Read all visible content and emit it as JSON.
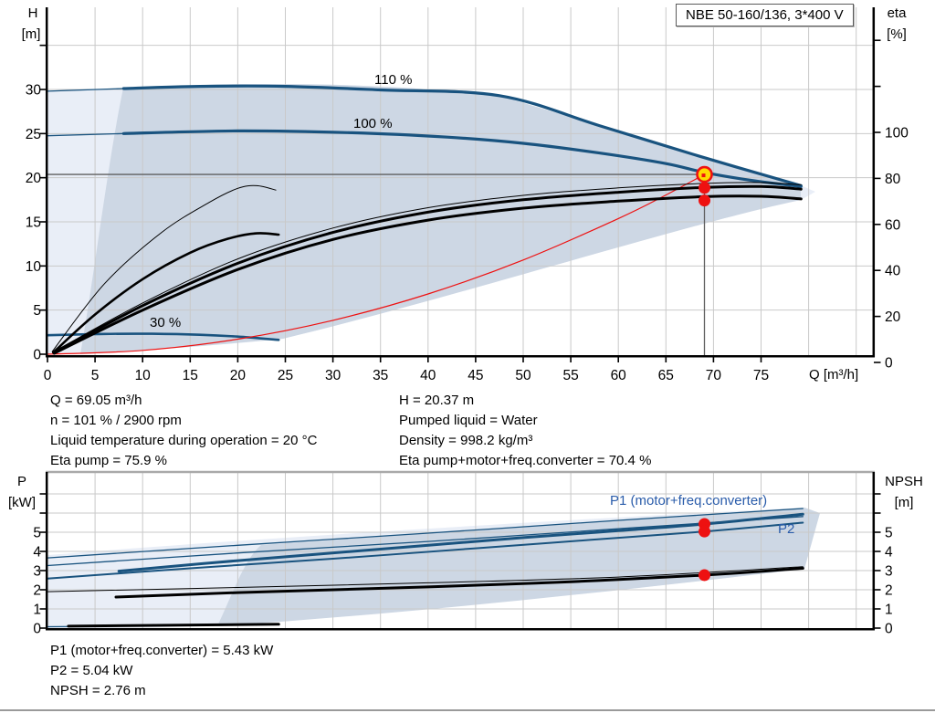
{
  "title_box": {
    "label": "NBE 50-160/136, 3*400 V"
  },
  "colors": {
    "curve_blue": "#19537f",
    "label_blue": "#2a5caa",
    "red": "#ee1111",
    "marker_yellow": "#ffd900",
    "fill_light": "#e9eef7",
    "fill_dark": "#cdd7e4",
    "grid": "#c9c9c9",
    "axis": "#000000",
    "duty_gray": "#5f5f5f",
    "frame_gray": "#a9a9a9"
  },
  "top_chart": {
    "left_axis": {
      "title_line1": "H",
      "title_line2": "[m]",
      "ticks": [
        0,
        5,
        10,
        15,
        20,
        25,
        30
      ]
    },
    "right_axis": {
      "title_line1": "eta",
      "title_line2": "[%]",
      "ticks": [
        0,
        20,
        40,
        60,
        80,
        100
      ]
    },
    "x_axis": {
      "label": "Q [m³/h]",
      "ticks": [
        0,
        5,
        10,
        15,
        20,
        25,
        30,
        35,
        40,
        45,
        50,
        55,
        60,
        65,
        70,
        75
      ]
    },
    "curve_labels": {
      "c110": "110 %",
      "c100": "100 %",
      "c30": "30 %"
    }
  },
  "bottom_chart": {
    "left_axis": {
      "title_line1": "P",
      "title_line2": "[kW]",
      "ticks": [
        0,
        1,
        2,
        3,
        4,
        5
      ]
    },
    "right_axis": {
      "title_line1": "NPSH",
      "title_line2": "[m]",
      "ticks": [
        0,
        1,
        2,
        3,
        4,
        5
      ]
    },
    "labels": {
      "p1": "P1 (motor+freq.converter)",
      "p2": "P2"
    }
  },
  "info_top": {
    "left": [
      "Q = 69.05 m³/h",
      "n = 101 % / 2900 rpm",
      "Liquid temperature during operation = 20 °C",
      "Eta pump = 75.9 %"
    ],
    "right": [
      "H = 20.37 m",
      "Pumped liquid = Water",
      "Density = 998.2 kg/m³",
      "Eta pump+motor+freq.converter = 70.4 %"
    ]
  },
  "info_bottom": [
    "P1 (motor+freq.converter) = 5.43 kW",
    "P2 = 5.04 kW",
    "NPSH = 2.76 m"
  ],
  "chart_data": [
    {
      "type": "line",
      "title": "NBE 50-160/136, 3*400 V",
      "xlabel": "Q [m³/h]",
      "ylabel": "H [m]",
      "y2label": "eta [%]",
      "xlim": [
        0,
        87
      ],
      "ylim": [
        0,
        39.3
      ],
      "y2lim": [
        0,
        154
      ],
      "grid": true,
      "legend_position": "none",
      "series": [
        {
          "name": "speed-110-envelope-thin",
          "axis": "left",
          "color": "curve_blue",
          "width": 1.3,
          "points": [
            [
              0,
              29.8
            ],
            [
              8,
              30.1
            ]
          ]
        },
        {
          "name": "speed-110-curve",
          "axis": "left",
          "color": "curve_blue",
          "width": 3.2,
          "points": [
            [
              8,
              30.1
            ],
            [
              16,
              30.35
            ],
            [
              25,
              30.35
            ],
            [
              35,
              29.95
            ],
            [
              47.5,
              29.3
            ],
            [
              58,
              25.9
            ],
            [
              68,
              22.6
            ],
            [
              79.2,
              19.1
            ]
          ]
        },
        {
          "name": "speed-100-envelope-thin",
          "axis": "left",
          "color": "curve_blue",
          "width": 1.3,
          "points": [
            [
              0,
              24.75
            ],
            [
              8,
              25.0
            ]
          ]
        },
        {
          "name": "speed-100-curve",
          "axis": "left",
          "color": "curve_blue",
          "width": 3.2,
          "points": [
            [
              8,
              25.0
            ],
            [
              20,
              25.3
            ],
            [
              32,
              25.1
            ],
            [
              42,
              24.6
            ],
            [
              50,
              23.9
            ],
            [
              58,
              22.8
            ],
            [
              65,
              21.6
            ],
            [
              69.05,
              20.6
            ],
            [
              74,
              19.7
            ],
            [
              79.2,
              19.0
            ]
          ]
        },
        {
          "name": "speed-30-curve",
          "axis": "left",
          "color": "curve_blue",
          "width": 2.6,
          "points": [
            [
              0,
              2.15
            ],
            [
              6,
              2.3
            ],
            [
              11,
              2.32
            ],
            [
              16,
              2.2
            ],
            [
              20,
              2.0
            ],
            [
              24.3,
              1.62
            ]
          ]
        },
        {
          "name": "duty-parabola",
          "axis": "left",
          "color": "red",
          "width": 1.2,
          "points": [
            [
              0,
              0
            ],
            [
              10,
              0.43
            ],
            [
              20,
              1.71
            ],
            [
              30,
              3.84
            ],
            [
              40,
              6.83
            ],
            [
              50,
              10.68
            ],
            [
              60,
              15.37
            ],
            [
              65,
              18.04
            ],
            [
              69.05,
              20.37
            ]
          ]
        },
        {
          "name": "eta-low-speed-thin",
          "axis": "left",
          "color": "axis",
          "width": 1,
          "points": [
            [
              0.5,
              0.3
            ],
            [
              6,
              8.0
            ],
            [
              12,
              13.8
            ],
            [
              17,
              17.2
            ],
            [
              20,
              18.8
            ],
            [
              22,
              19.1
            ],
            [
              24,
              18.6
            ]
          ]
        },
        {
          "name": "eta-mid-speed-thick",
          "axis": "left",
          "color": "axis",
          "width": 2.6,
          "points": [
            [
              0.6,
              0.2
            ],
            [
              5,
              4.5
            ],
            [
              10,
              8.5
            ],
            [
              15,
              11.5
            ],
            [
              19,
              13.1
            ],
            [
              22,
              13.7
            ],
            [
              24.3,
              13.55
            ]
          ]
        },
        {
          "name": "eta-band-upper-thin",
          "axis": "left",
          "color": "axis",
          "width": 1,
          "points": [
            [
              0.7,
              0.3
            ],
            [
              10,
              5.8
            ],
            [
              20,
              10.8
            ],
            [
              30,
              14.3
            ],
            [
              40,
              16.6
            ],
            [
              50,
              18.0
            ],
            [
              60,
              18.85
            ],
            [
              69,
              19.35
            ],
            [
              75,
              19.45
            ],
            [
              79.2,
              19.2
            ]
          ]
        },
        {
          "name": "eta-band-main",
          "axis": "left",
          "color": "axis",
          "width": 3,
          "points": [
            [
              0.7,
              0.2
            ],
            [
              10,
              5.5
            ],
            [
              20,
              10.3
            ],
            [
              30,
              13.8
            ],
            [
              40,
              16.1
            ],
            [
              50,
              17.5
            ],
            [
              60,
              18.35
            ],
            [
              69,
              18.9
            ],
            [
              75,
              19.0
            ],
            [
              79.2,
              18.7
            ]
          ]
        },
        {
          "name": "eta-band-lower",
          "axis": "left",
          "color": "axis",
          "width": 3,
          "points": [
            [
              0.7,
              0.1
            ],
            [
              10,
              5.0
            ],
            [
              20,
              9.6
            ],
            [
              30,
              13.0
            ],
            [
              40,
              15.2
            ],
            [
              50,
              16.55
            ],
            [
              60,
              17.35
            ],
            [
              69,
              17.85
            ],
            [
              75,
              17.9
            ],
            [
              79.2,
              17.6
            ]
          ]
        }
      ],
      "operating_point": {
        "Q": 69.05,
        "H": 20.37,
        "eta_pump": 75.9,
        "eta_total": 70.4
      }
    },
    {
      "type": "line",
      "xlabel": "Q [m³/h]",
      "ylabel": "P [kW]",
      "y2label": "NPSH [m]",
      "xlim": [
        0,
        87
      ],
      "ylim": [
        0,
        8.15
      ],
      "y2lim": [
        0,
        8.15
      ],
      "grid": true,
      "legend_position": "inline",
      "series": [
        {
          "name": "p-envelope-upper-thin",
          "axis": "left",
          "color": "curve_blue",
          "width": 1.3,
          "points": [
            [
              0,
              3.66
            ],
            [
              20,
              4.32
            ],
            [
              40,
              4.95
            ],
            [
              60,
              5.62
            ],
            [
              79.4,
              6.24
            ]
          ]
        },
        {
          "name": "p-envelope-thin-2",
          "axis": "left",
          "color": "curve_blue",
          "width": 1.3,
          "points": [
            [
              0,
              3.26
            ],
            [
              20,
              3.92
            ],
            [
              40,
              4.52
            ],
            [
              60,
              5.18
            ],
            [
              79.4,
              5.82
            ]
          ]
        },
        {
          "name": "p1-curve",
          "axis": "left",
          "color": "curve_blue",
          "width": 3,
          "points": [
            [
              7.5,
              2.97
            ],
            [
              20,
              3.52
            ],
            [
              35,
              4.12
            ],
            [
              50,
              4.72
            ],
            [
              60,
              5.08
            ],
            [
              69.05,
              5.43
            ],
            [
              79.4,
              5.94
            ]
          ]
        },
        {
          "name": "p2-curve",
          "axis": "left",
          "color": "curve_blue",
          "width": 2,
          "points": [
            [
              0,
              2.58
            ],
            [
              15,
              3.12
            ],
            [
              30,
              3.62
            ],
            [
              45,
              4.16
            ],
            [
              57,
              4.6
            ],
            [
              69.05,
              5.04
            ],
            [
              79.4,
              5.5
            ]
          ]
        },
        {
          "name": "npsh-envelope-thin",
          "axis": "right",
          "color": "axis",
          "width": 1,
          "points": [
            [
              0,
              1.9
            ],
            [
              20,
              2.12
            ],
            [
              40,
              2.36
            ],
            [
              60,
              2.66
            ],
            [
              79.4,
              3.2
            ]
          ]
        },
        {
          "name": "npsh-curve",
          "axis": "right",
          "color": "axis",
          "width": 3,
          "points": [
            [
              7.2,
              1.62
            ],
            [
              20,
              1.85
            ],
            [
              40,
              2.15
            ],
            [
              55,
              2.42
            ],
            [
              69.05,
              2.76
            ],
            [
              79.4,
              3.12
            ]
          ]
        },
        {
          "name": "p-30-stub-thin",
          "axis": "left",
          "color": "curve_blue",
          "width": 1.2,
          "points": [
            [
              0,
              0.07
            ],
            [
              24.3,
              0.18
            ]
          ]
        },
        {
          "name": "p-30-stub",
          "axis": "left",
          "color": "axis",
          "width": 3,
          "points": [
            [
              2.2,
              0.1
            ],
            [
              24.3,
              0.2
            ]
          ]
        }
      ],
      "operating_point": {
        "Q": 69.05,
        "P1": 5.43,
        "P2": 5.04,
        "NPSH": 2.76
      }
    }
  ]
}
